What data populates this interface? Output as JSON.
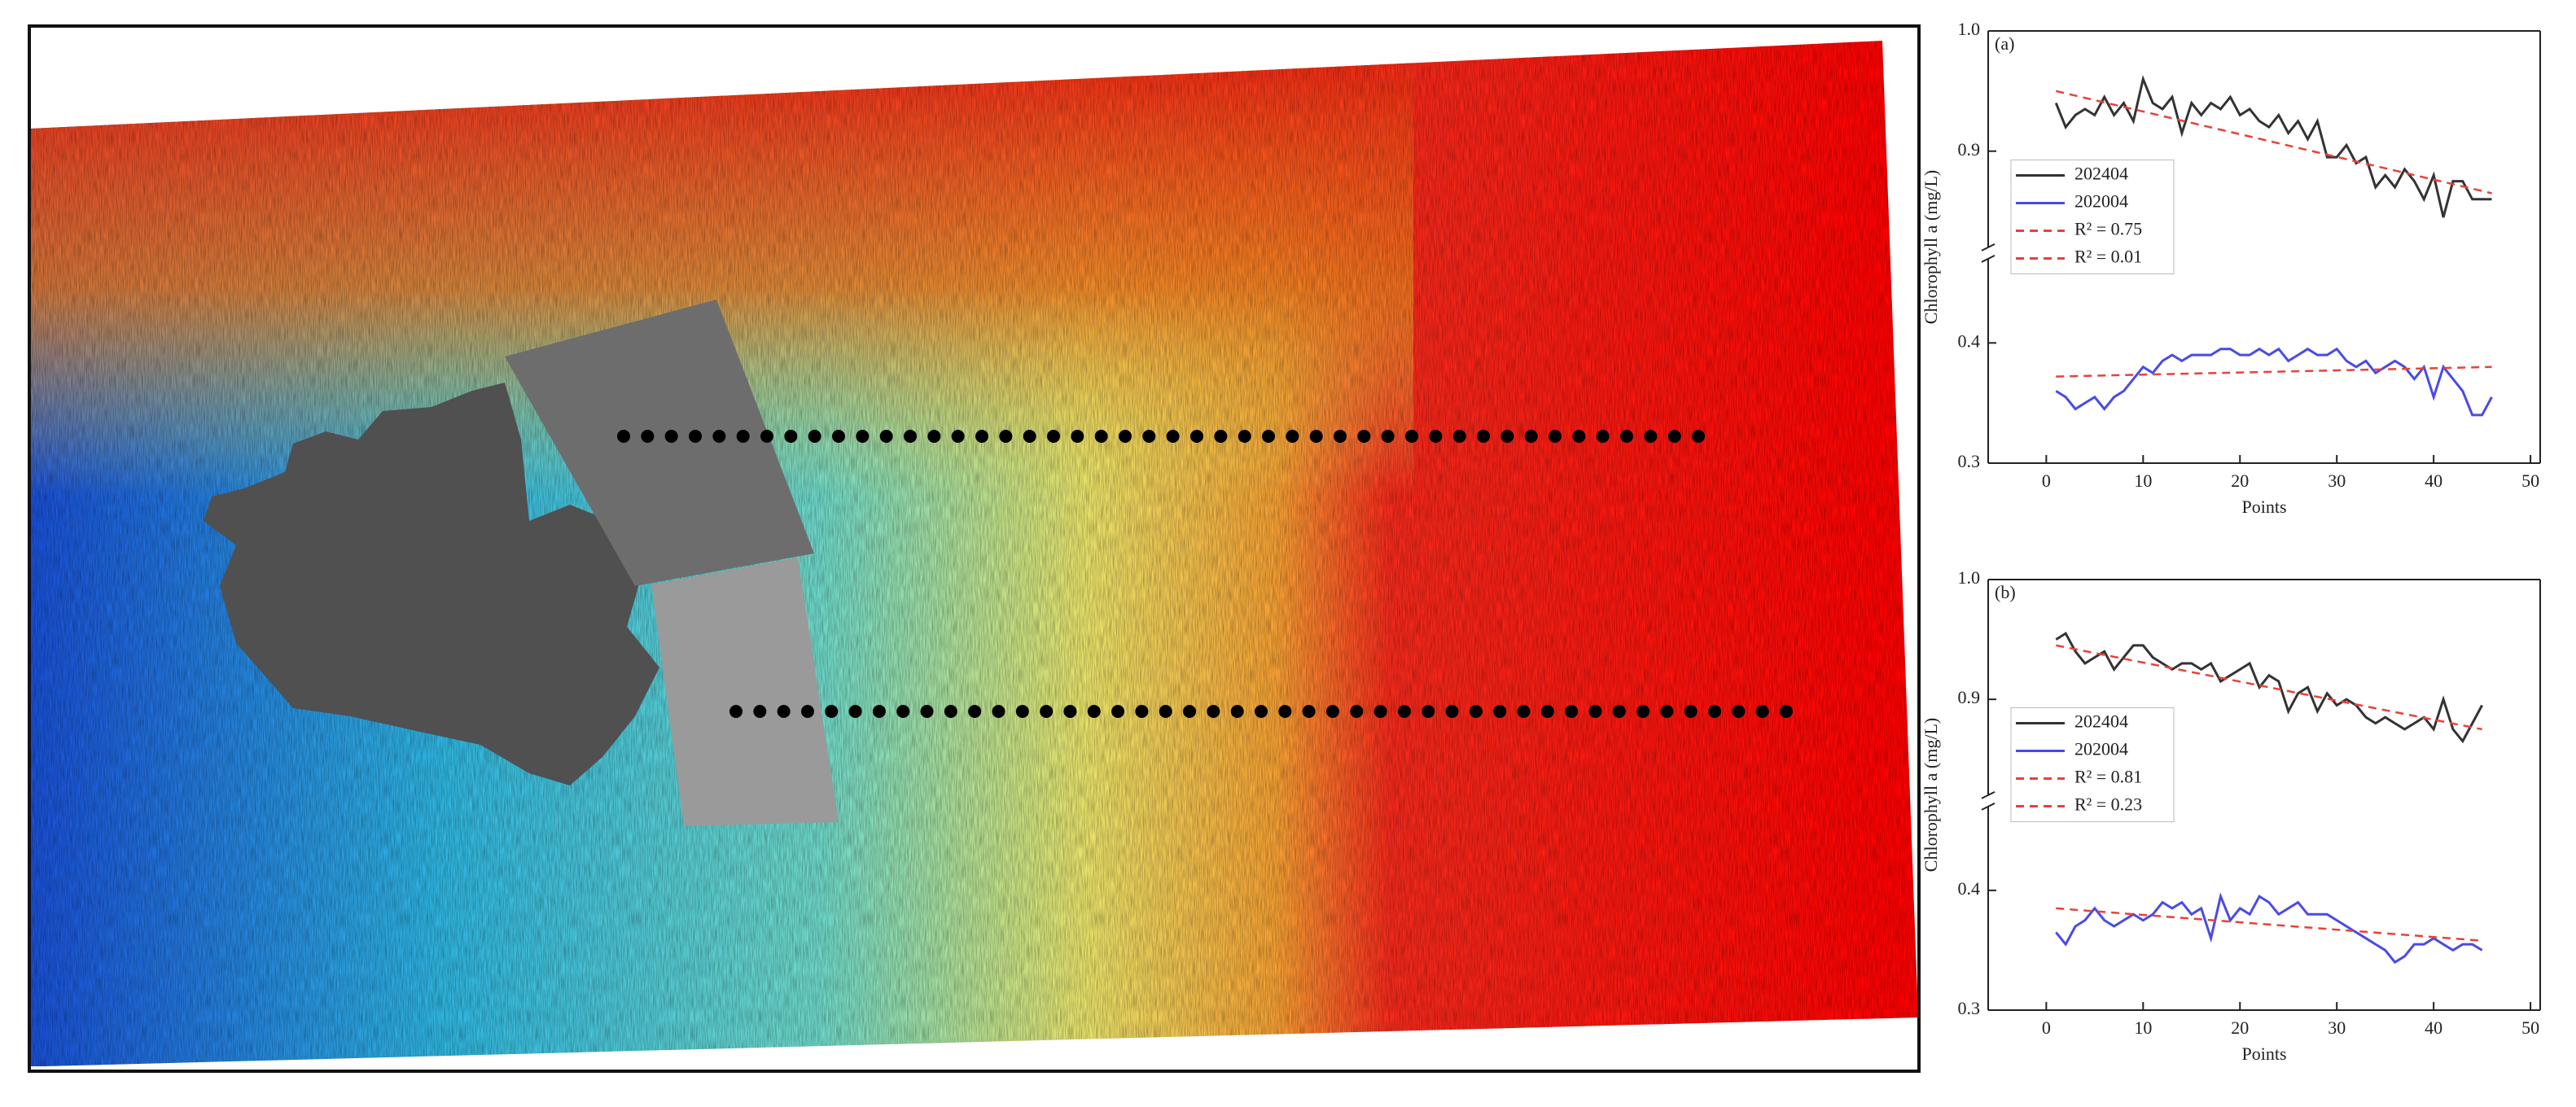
{
  "chart_data": [
    {
      "type": "line",
      "panel_label": "(a)",
      "y_label": "Chlorophyll a (mg/L)",
      "x_label": "Points",
      "xlim": [
        -6,
        51
      ],
      "xticks": [
        0,
        10,
        20,
        30,
        40,
        50
      ],
      "ylim": [
        0.3,
        1.0
      ],
      "ybreak": [
        0.47,
        0.82
      ],
      "yticks": [
        0.3,
        0.4,
        0.9,
        {
          "value": 1,
          "label": "1.0"
        }
      ],
      "legend": "center left",
      "x": [
        1,
        2,
        3,
        4,
        5,
        6,
        7,
        8,
        9,
        10,
        11,
        12,
        13,
        14,
        15,
        16,
        17,
        18,
        19,
        20,
        21,
        22,
        23,
        24,
        25,
        26,
        27,
        28,
        29,
        30,
        31,
        32,
        33,
        34,
        35,
        36,
        37,
        38,
        39,
        40,
        41,
        42,
        43,
        44,
        45,
        46
      ],
      "series": [
        {
          "name": "202404",
          "color": "#333333",
          "values": [
            0.94,
            0.92,
            0.93,
            0.935,
            0.93,
            0.945,
            0.93,
            0.94,
            0.925,
            0.96,
            0.94,
            0.935,
            0.945,
            0.915,
            0.94,
            0.93,
            0.94,
            0.935,
            0.945,
            0.93,
            0.935,
            0.925,
            0.92,
            0.93,
            0.915,
            0.925,
            0.91,
            0.925,
            0.895,
            0.895,
            0.905,
            0.89,
            0.895,
            0.87,
            0.88,
            0.87,
            0.885,
            0.875,
            0.86,
            0.88,
            0.845,
            0.875,
            0.875,
            0.86,
            0.86,
            0.86
          ]
        },
        {
          "name": "202004",
          "color": "#4a4ae8",
          "values": [
            0.36,
            0.355,
            0.345,
            0.35,
            0.355,
            0.345,
            0.355,
            0.36,
            0.37,
            0.38,
            0.375,
            0.385,
            0.39,
            0.385,
            0.39,
            0.39,
            0.39,
            0.395,
            0.395,
            0.39,
            0.39,
            0.395,
            0.39,
            0.395,
            0.385,
            0.39,
            0.395,
            0.39,
            0.39,
            0.395,
            0.385,
            0.38,
            0.385,
            0.375,
            0.38,
            0.385,
            0.38,
            0.37,
            0.38,
            0.355,
            0.38,
            0.37,
            0.36,
            0.34,
            0.34,
            0.355
          ]
        },
        {
          "name": "R² = 0.75",
          "color": "#e8413a",
          "dashed": true,
          "x": [
            1,
            46
          ],
          "values": [
            0.95,
            0.865
          ]
        },
        {
          "name": "R² = 0.01",
          "color": "#e8413a",
          "dashed": true,
          "x": [
            1,
            46
          ],
          "values": [
            0.372,
            0.38
          ]
        }
      ]
    },
    {
      "type": "line",
      "panel_label": "(b)",
      "y_label": "Chlorophyll a (mg/L)",
      "x_label": "Points",
      "xlim": [
        -6,
        51
      ],
      "xticks": [
        0,
        10,
        20,
        30,
        40,
        50
      ],
      "ylim": [
        0.3,
        1.0
      ],
      "ybreak": [
        0.47,
        0.82
      ],
      "yticks": [
        0.3,
        0.4,
        0.9,
        {
          "value": 1,
          "label": "1.0"
        }
      ],
      "legend": "center left",
      "x": [
        1,
        2,
        3,
        4,
        5,
        6,
        7,
        8,
        9,
        10,
        11,
        12,
        13,
        14,
        15,
        16,
        17,
        18,
        19,
        20,
        21,
        22,
        23,
        24,
        25,
        26,
        27,
        28,
        29,
        30,
        31,
        32,
        33,
        34,
        35,
        36,
        37,
        38,
        39,
        40,
        41,
        42,
        43,
        44,
        45
      ],
      "series": [
        {
          "name": "202404",
          "color": "#333333",
          "values": [
            0.95,
            0.955,
            0.94,
            0.93,
            0.935,
            0.94,
            0.925,
            0.935,
            0.945,
            0.945,
            0.935,
            0.93,
            0.925,
            0.93,
            0.93,
            0.925,
            0.93,
            0.915,
            0.92,
            0.925,
            0.93,
            0.91,
            0.92,
            0.915,
            0.89,
            0.905,
            0.91,
            0.89,
            0.905,
            0.895,
            0.9,
            0.895,
            0.885,
            0.88,
            0.885,
            0.88,
            0.875,
            0.88,
            0.885,
            0.875,
            0.9,
            0.875,
            0.865,
            0.88,
            0.895
          ]
        },
        {
          "name": "202004",
          "color": "#4a4ae8",
          "values": [
            0.365,
            0.355,
            0.37,
            0.375,
            0.385,
            0.375,
            0.37,
            0.375,
            0.38,
            0.375,
            0.38,
            0.39,
            0.385,
            0.39,
            0.38,
            0.385,
            0.36,
            0.395,
            0.375,
            0.385,
            0.38,
            0.395,
            0.39,
            0.38,
            0.385,
            0.39,
            0.38,
            0.38,
            0.38,
            0.375,
            0.37,
            0.365,
            0.36,
            0.355,
            0.35,
            0.34,
            0.345,
            0.355,
            0.355,
            0.36,
            0.355,
            0.35,
            0.355,
            0.355,
            0.35
          ]
        },
        {
          "name": "R² = 0.81",
          "color": "#e8413a",
          "dashed": true,
          "x": [
            1,
            45
          ],
          "values": [
            0.945,
            0.875
          ]
        },
        {
          "name": "R² = 0.23",
          "color": "#e8413a",
          "dashed": true,
          "x": [
            1,
            45
          ],
          "values": [
            0.385,
            0.358
          ]
        }
      ]
    }
  ]
}
